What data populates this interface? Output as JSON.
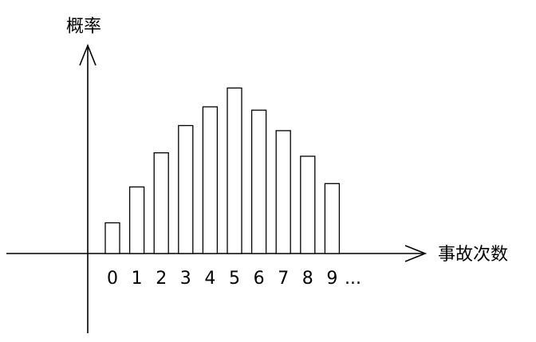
{
  "chart_data": {
    "type": "bar",
    "title": "",
    "ylabel": "概率",
    "xlabel": "事故次数",
    "categories": [
      "0",
      "1",
      "2",
      "3",
      "4",
      "5",
      "6",
      "7",
      "8",
      "9"
    ],
    "ellipsis": "...",
    "values": [
      0.18,
      0.39,
      0.59,
      0.75,
      0.86,
      0.97,
      0.84,
      0.72,
      0.57,
      0.41
    ],
    "ylim": [
      0,
      1
    ],
    "grid": false,
    "legend": "none",
    "colors": {
      "bar_fill": "#ffffff",
      "bar_stroke": "#000000",
      "axis": "#000000"
    }
  }
}
